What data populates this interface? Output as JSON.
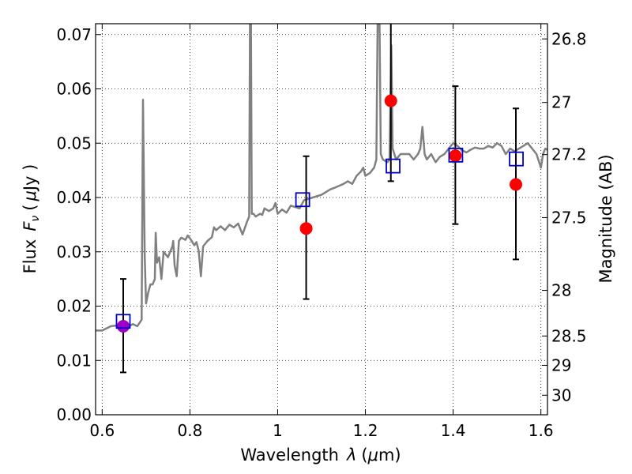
{
  "chart_data": {
    "type": "scatter",
    "xlabel_prefix": "Wavelength",
    "xlabel_symbol": "λ",
    "xlabel_unit_open": "(",
    "xlabel_unit_mu": "μ",
    "xlabel_unit_rest": "m)",
    "ylabel_prefix": "Flux",
    "ylabel_symbol": "F",
    "ylabel_sub": "ν",
    "ylabel_unit_open": "(",
    "ylabel_unit_mu": "μ",
    "ylabel_unit_rest": "Jy )",
    "y2label": "Magnitude (AB)",
    "xlim": [
      0.585,
      1.615
    ],
    "ylim": [
      0.0,
      0.072
    ],
    "x_ticks": [
      0.6,
      0.8,
      1.0,
      1.2,
      1.4,
      1.6
    ],
    "x_tick_labels": [
      "0.6",
      "0.8",
      "1",
      "1.2",
      "1.4",
      "1.6"
    ],
    "y_ticks": [
      0.0,
      0.01,
      0.02,
      0.03,
      0.04,
      0.05,
      0.06,
      0.07
    ],
    "y_tick_labels": [
      "0.00",
      "0.01",
      "0.02",
      "0.03",
      "0.04",
      "0.05",
      "0.06",
      "0.07"
    ],
    "y2_ticks": [
      {
        "label": "26.8",
        "flux": 0.0692
      },
      {
        "label": "27",
        "flux": 0.0575
      },
      {
        "label": "27.2",
        "flux": 0.0479
      },
      {
        "label": "27.5",
        "flux": 0.0363
      },
      {
        "label": "28",
        "flux": 0.0229
      },
      {
        "label": "28.5",
        "flux": 0.0145
      },
      {
        "label": "29",
        "flux": 0.0091
      },
      {
        "label": "30",
        "flux": 0.0036
      }
    ],
    "grid": true,
    "colors": {
      "spectrum": "#808080",
      "observed": "#ff0000",
      "model": "#0000cc",
      "first_point": "#a000c8",
      "errorbar": "#000000"
    },
    "series": [
      {
        "name": "observed",
        "marker": "filled circle",
        "points": [
          {
            "x": 0.648,
            "y": 0.0163,
            "yerr_low": 0.0078,
            "yerr_high": 0.025
          },
          {
            "x": 1.065,
            "y": 0.0343,
            "yerr_low": 0.0213,
            "yerr_high": 0.0476
          },
          {
            "x": 1.258,
            "y": 0.0578,
            "yerr_low": 0.043,
            "yerr_high": 0.0722
          },
          {
            "x": 1.405,
            "y": 0.0477,
            "yerr_low": 0.0351,
            "yerr_high": 0.0605
          },
          {
            "x": 1.543,
            "y": 0.0424,
            "yerr_low": 0.0286,
            "yerr_high": 0.0564
          }
        ]
      },
      {
        "name": "model",
        "marker": "open square",
        "points": [
          {
            "x": 0.648,
            "y": 0.0172
          },
          {
            "x": 1.057,
            "y": 0.0396
          },
          {
            "x": 1.263,
            "y": 0.0458
          },
          {
            "x": 1.406,
            "y": 0.0478
          },
          {
            "x": 1.544,
            "y": 0.0471
          }
        ]
      },
      {
        "name": "spectrum",
        "marker": "line",
        "points": [
          [
            0.585,
            0.0155
          ],
          [
            0.6,
            0.0155
          ],
          [
            0.62,
            0.0163
          ],
          [
            0.64,
            0.0165
          ],
          [
            0.655,
            0.016
          ],
          [
            0.67,
            0.0167
          ],
          [
            0.68,
            0.0163
          ],
          [
            0.69,
            0.0175
          ],
          [
            0.693,
            0.058
          ],
          [
            0.697,
            0.029
          ],
          [
            0.7,
            0.0205
          ],
          [
            0.705,
            0.0225
          ],
          [
            0.71,
            0.024
          ],
          [
            0.715,
            0.024
          ],
          [
            0.72,
            0.025
          ],
          [
            0.722,
            0.0335
          ],
          [
            0.725,
            0.028
          ],
          [
            0.73,
            0.029
          ],
          [
            0.735,
            0.025
          ],
          [
            0.74,
            0.03
          ],
          [
            0.75,
            0.029
          ],
          [
            0.755,
            0.03
          ],
          [
            0.76,
            0.031
          ],
          [
            0.762,
            0.032
          ],
          [
            0.765,
            0.0275
          ],
          [
            0.77,
            0.0255
          ],
          [
            0.775,
            0.032
          ],
          [
            0.78,
            0.0326
          ],
          [
            0.79,
            0.0322
          ],
          [
            0.795,
            0.033
          ],
          [
            0.8,
            0.0325
          ],
          [
            0.81,
            0.0312
          ],
          [
            0.815,
            0.0318
          ],
          [
            0.82,
            0.0302
          ],
          [
            0.825,
            0.0255
          ],
          [
            0.83,
            0.031
          ],
          [
            0.84,
            0.032
          ],
          [
            0.85,
            0.0327
          ],
          [
            0.855,
            0.0345
          ],
          [
            0.86,
            0.034
          ],
          [
            0.87,
            0.0347
          ],
          [
            0.88,
            0.034
          ],
          [
            0.89,
            0.035
          ],
          [
            0.9,
            0.0345
          ],
          [
            0.91,
            0.0352
          ],
          [
            0.92,
            0.0332
          ],
          [
            0.93,
            0.0355
          ],
          [
            0.935,
            0.0365
          ],
          [
            0.937,
            0.074
          ],
          [
            0.939,
            0.074
          ],
          [
            0.941,
            0.037
          ],
          [
            0.945,
            0.037
          ],
          [
            0.95,
            0.0365
          ],
          [
            0.96,
            0.037
          ],
          [
            0.965,
            0.0368
          ],
          [
            0.97,
            0.038
          ],
          [
            0.98,
            0.0375
          ],
          [
            0.99,
            0.038
          ],
          [
            0.995,
            0.039
          ],
          [
            1.0,
            0.037
          ],
          [
            1.01,
            0.0378
          ],
          [
            1.02,
            0.0372
          ],
          [
            1.03,
            0.0385
          ],
          [
            1.05,
            0.038
          ],
          [
            1.06,
            0.0395
          ],
          [
            1.08,
            0.04
          ],
          [
            1.1,
            0.0405
          ],
          [
            1.12,
            0.0415
          ],
          [
            1.13,
            0.0418
          ],
          [
            1.15,
            0.0425
          ],
          [
            1.16,
            0.043
          ],
          [
            1.17,
            0.0425
          ],
          [
            1.18,
            0.044
          ],
          [
            1.19,
            0.0448
          ],
          [
            1.195,
            0.0455
          ],
          [
            1.2,
            0.044
          ],
          [
            1.21,
            0.0445
          ],
          [
            1.22,
            0.0455
          ],
          [
            1.225,
            0.047
          ],
          [
            1.228,
            0.074
          ],
          [
            1.232,
            0.074
          ],
          [
            1.235,
            0.048
          ],
          [
            1.24,
            0.047
          ],
          [
            1.25,
            0.0465
          ],
          [
            1.255,
            0.047
          ],
          [
            1.259,
            0.068
          ],
          [
            1.262,
            0.049
          ],
          [
            1.27,
            0.047
          ],
          [
            1.28,
            0.048
          ],
          [
            1.3,
            0.048
          ],
          [
            1.31,
            0.047
          ],
          [
            1.32,
            0.048
          ],
          [
            1.325,
            0.049
          ],
          [
            1.33,
            0.053
          ],
          [
            1.335,
            0.048
          ],
          [
            1.34,
            0.047
          ],
          [
            1.35,
            0.048
          ],
          [
            1.36,
            0.0465
          ],
          [
            1.37,
            0.0475
          ],
          [
            1.38,
            0.048
          ],
          [
            1.39,
            0.049
          ],
          [
            1.4,
            0.05
          ],
          [
            1.41,
            0.0495
          ],
          [
            1.42,
            0.0487
          ],
          [
            1.43,
            0.0483
          ],
          [
            1.44,
            0.0488
          ],
          [
            1.45,
            0.0492
          ],
          [
            1.46,
            0.049
          ],
          [
            1.47,
            0.049
          ],
          [
            1.48,
            0.0495
          ],
          [
            1.49,
            0.0492
          ],
          [
            1.5,
            0.05
          ],
          [
            1.51,
            0.0495
          ],
          [
            1.52,
            0.048
          ],
          [
            1.53,
            0.049
          ],
          [
            1.54,
            0.0485
          ],
          [
            1.55,
            0.049
          ],
          [
            1.56,
            0.0495
          ],
          [
            1.57,
            0.05
          ],
          [
            1.58,
            0.049
          ],
          [
            1.59,
            0.048
          ],
          [
            1.6,
            0.0455
          ],
          [
            1.605,
            0.048
          ],
          [
            1.61,
            0.049
          ],
          [
            1.615,
            0.0488
          ]
        ]
      }
    ]
  }
}
